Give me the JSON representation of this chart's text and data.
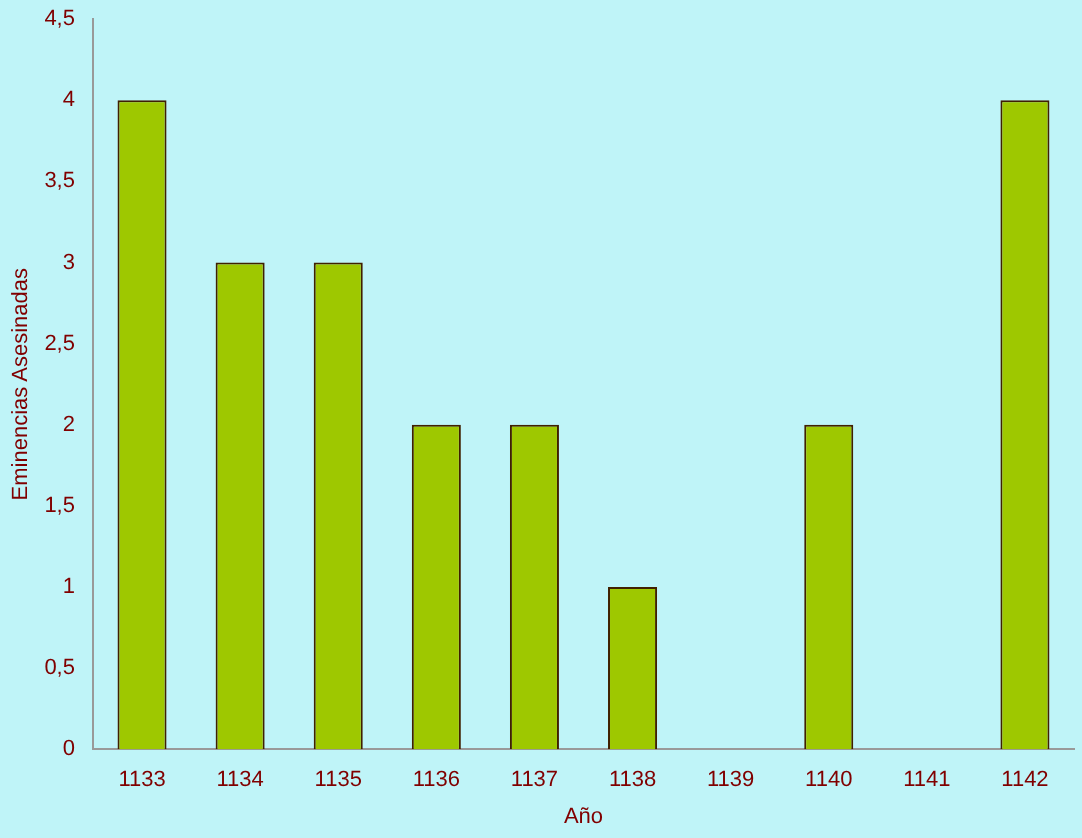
{
  "chart_data": {
    "type": "bar",
    "xlabel": "Año",
    "ylabel": "Eminencias Asesinadas",
    "categories": [
      "1133",
      "1134",
      "1135",
      "1136",
      "1137",
      "1138",
      "1139",
      "1140",
      "1141",
      "1142"
    ],
    "values": [
      4,
      3,
      3,
      2,
      2,
      1,
      0,
      2,
      0,
      4
    ],
    "color": "#9ec800",
    "ylim": [
      0,
      4.5
    ],
    "yticks": [
      0,
      {
        "value": 0.5,
        "label": "0,5"
      },
      1,
      {
        "value": 1.5,
        "label": "1,5"
      },
      2,
      {
        "value": 2.5,
        "label": "2,5"
      },
      3,
      {
        "value": 3.5,
        "label": "3,5"
      },
      4,
      {
        "value": 4.5,
        "label": "4,5"
      }
    ],
    "grid": false,
    "legend": false
  }
}
